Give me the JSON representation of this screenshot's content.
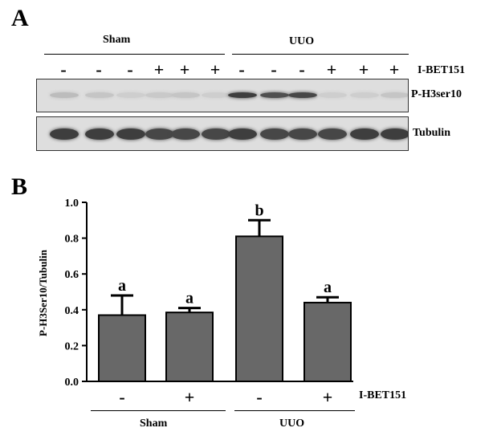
{
  "panel_a": {
    "letter": "A",
    "groups": [
      {
        "label": "Sham"
      },
      {
        "label": "UUO"
      }
    ],
    "treatment_label": "I-BET151",
    "treatment_signs": [
      "-",
      "-",
      "-",
      "+",
      "+",
      "+",
      "-",
      "-",
      "-",
      "+",
      "+",
      "+"
    ],
    "blots": [
      {
        "label": "P-H3ser10",
        "band_intensity": [
          0.15,
          0.1,
          0.05,
          0.08,
          0.1,
          0.05,
          0.85,
          0.75,
          0.8,
          0.05,
          0.05,
          0.1
        ]
      },
      {
        "label": "Tubulin",
        "band_intensity": [
          0.85,
          0.85,
          0.85,
          0.8,
          0.8,
          0.8,
          0.85,
          0.8,
          0.8,
          0.8,
          0.85,
          0.85
        ]
      }
    ]
  },
  "panel_b": {
    "letter": "B",
    "treatment_label": "I-BET151",
    "group_labels": [
      "Sham",
      "UUO"
    ]
  },
  "chart_data": {
    "type": "bar",
    "title": "",
    "xlabel": "",
    "ylabel": "P-H3Ser10/Tubulin",
    "ylim": [
      0,
      1.0
    ],
    "yticks": [
      "0.0",
      "0.2",
      "0.4",
      "0.6",
      "0.8",
      "1.0"
    ],
    "categories": [
      "-",
      "+",
      "-",
      "+"
    ],
    "values": [
      0.37,
      0.385,
      0.81,
      0.44
    ],
    "errors": [
      0.11,
      0.025,
      0.09,
      0.03
    ],
    "annotations": [
      "a",
      "a",
      "b",
      "a"
    ],
    "bar_color": "#686868",
    "grid": false
  }
}
